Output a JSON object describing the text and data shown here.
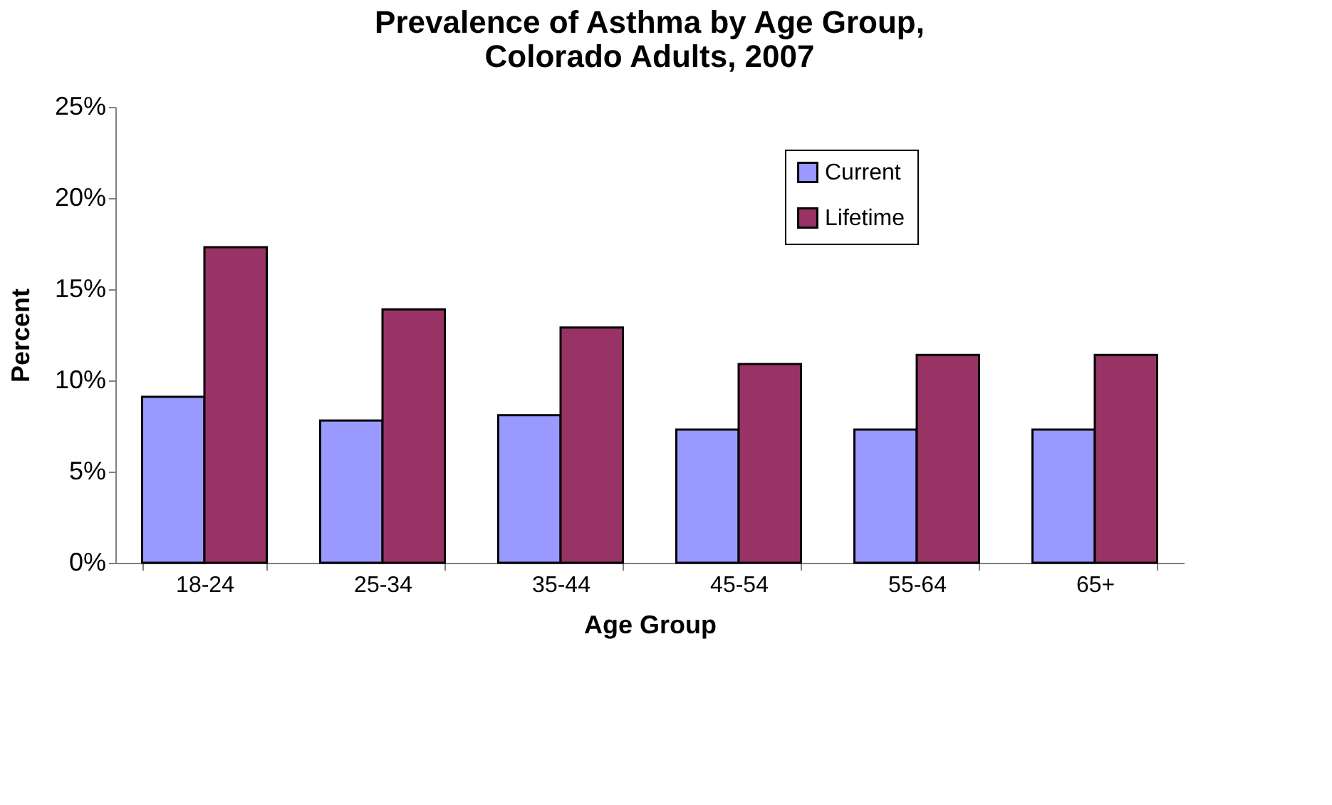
{
  "chart_data": {
    "type": "bar",
    "title": "Prevalence of Asthma by Age Group,\nColorado Adults, 2007",
    "xlabel": "Age Group",
    "ylabel": "Percent",
    "categories": [
      "18-24",
      "25-34",
      "35-44",
      "45-54",
      "55-64",
      "65+"
    ],
    "series": [
      {
        "name": "Current",
        "color": "#9999ff",
        "values": [
          9.1,
          7.8,
          8.1,
          7.3,
          7.3,
          7.3
        ]
      },
      {
        "name": "Lifetime",
        "color": "#993366",
        "values": [
          17.3,
          13.9,
          12.9,
          10.9,
          11.4,
          11.4
        ]
      }
    ],
    "ylim": [
      0,
      25
    ],
    "yticks": [
      {
        "value": 0,
        "label": "0%"
      },
      {
        "value": 5,
        "label": "5%"
      },
      {
        "value": 10,
        "label": "10%"
      },
      {
        "value": 15,
        "label": "15%"
      },
      {
        "value": 20,
        "label": "20%"
      },
      {
        "value": 25,
        "label": "25%"
      }
    ],
    "grid": false,
    "legend": "top right"
  }
}
